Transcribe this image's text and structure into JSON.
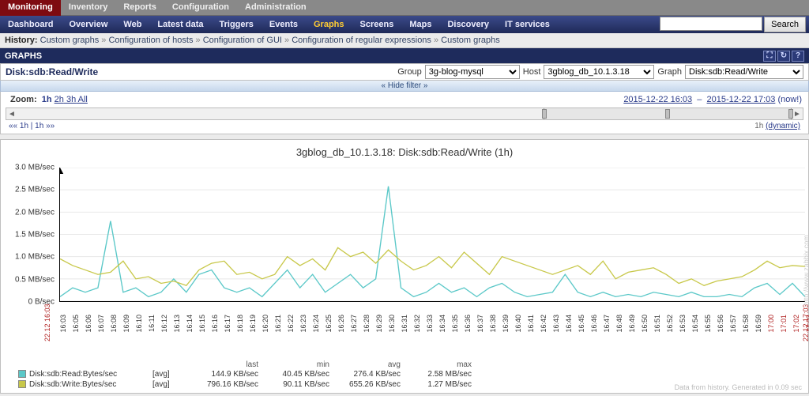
{
  "top_tabs": [
    "Monitoring",
    "Inventory",
    "Reports",
    "Configuration",
    "Administration"
  ],
  "top_tabs_active": 0,
  "sub_nav": [
    "Dashboard",
    "Overview",
    "Web",
    "Latest data",
    "Triggers",
    "Events",
    "Graphs",
    "Screens",
    "Maps",
    "Discovery",
    "IT services"
  ],
  "sub_nav_active": 6,
  "search_btn": "Search",
  "history": {
    "label": "History:",
    "items": [
      "Custom graphs",
      "Configuration of hosts",
      "Configuration of GUI",
      "Configuration of regular expressions",
      "Custom graphs"
    ]
  },
  "graphs_strip": "GRAPHS",
  "filters": {
    "title": "Disk:sdb:Read/Write",
    "group_label": "Group",
    "group_value": "3g-blog-mysql",
    "host_label": "Host",
    "host_value": "3gblog_db_10.1.3.18",
    "graph_label": "Graph",
    "graph_value": "Disk:sdb:Read/Write"
  },
  "hide_filter": "« Hide filter »",
  "zoom": {
    "label": "Zoom:",
    "current": "1h",
    "links": [
      "2h",
      "3h",
      "All"
    ],
    "range_from": "2015-12-22 16:03",
    "range_to": "2015-12-22 17:03",
    "now": "(now!)",
    "nav_left": "«« 1h  |  1h  »»",
    "nav_right": "1h (dynamic)"
  },
  "chart": {
    "title": "3gblog_db_10.1.3.18: Disk:sdb:Read/Write (1h)",
    "ymax": 3.0,
    "ylabels": [
      "3.0 MB/sec",
      "2.5 MB/sec",
      "2.0 MB/sec",
      "1.5 MB/sec",
      "1.0 MB/sec",
      "0.5 MB/sec",
      "0 B/sec"
    ],
    "xlabels": [
      "16:03",
      "16:05",
      "16:06",
      "16:07",
      "16:08",
      "16:09",
      "16:10",
      "16:11",
      "16:12",
      "16:13",
      "16:14",
      "16:15",
      "16:16",
      "16:17",
      "16:18",
      "16:19",
      "16:20",
      "16:21",
      "16:22",
      "16:23",
      "16:24",
      "16:25",
      "16:26",
      "16:27",
      "16:28",
      "16:29",
      "16:30",
      "16:31",
      "16:32",
      "16:33",
      "16:34",
      "16:35",
      "16:36",
      "16:37",
      "16:38",
      "16:39",
      "16:40",
      "16:41",
      "16:42",
      "16:43",
      "16:44",
      "16:45",
      "16:46",
      "16:47",
      "16:48",
      "16:49",
      "16:50",
      "16:51",
      "16:52",
      "16:53",
      "16:54",
      "16:55",
      "16:56",
      "16:57",
      "16:58",
      "16:59",
      "17:00",
      "17:01",
      "17:02",
      "17:03"
    ],
    "date_label_left": "22.12 16:03",
    "date_label_right": "22.12 17:03",
    "series": [
      {
        "name": "Disk:sdb:Read:Bytes/sec",
        "color": "#5bc8c8",
        "agg": "[avg]",
        "last": "144.9 KB/sec",
        "min": "40.45 KB/sec",
        "avg": "276.4 KB/sec",
        "max": "2.58 MB/sec",
        "values": [
          0.1,
          0.3,
          0.2,
          0.3,
          1.8,
          0.2,
          0.3,
          0.1,
          0.2,
          0.5,
          0.2,
          0.6,
          0.7,
          0.3,
          0.2,
          0.3,
          0.1,
          0.4,
          0.7,
          0.3,
          0.6,
          0.2,
          0.4,
          0.6,
          0.3,
          0.5,
          2.58,
          0.3,
          0.1,
          0.2,
          0.4,
          0.2,
          0.3,
          0.1,
          0.3,
          0.4,
          0.2,
          0.1,
          0.15,
          0.2,
          0.6,
          0.2,
          0.1,
          0.2,
          0.1,
          0.15,
          0.1,
          0.2,
          0.15,
          0.1,
          0.2,
          0.1,
          0.1,
          0.15,
          0.1,
          0.3,
          0.4,
          0.15,
          0.4,
          0.1
        ]
      },
      {
        "name": "Disk:sdb:Write:Bytes/sec",
        "color": "#c8c84a",
        "agg": "[avg]",
        "last": "796.16 KB/sec",
        "min": "90.11 KB/sec",
        "avg": "655.26 KB/sec",
        "max": "1.27 MB/sec",
        "values": [
          0.95,
          0.8,
          0.7,
          0.6,
          0.65,
          0.9,
          0.5,
          0.55,
          0.4,
          0.45,
          0.35,
          0.7,
          0.85,
          0.9,
          0.6,
          0.65,
          0.5,
          0.6,
          1.0,
          0.8,
          0.95,
          0.7,
          1.2,
          1.0,
          1.1,
          0.85,
          1.15,
          0.9,
          0.7,
          0.8,
          1.0,
          0.75,
          1.1,
          0.85,
          0.6,
          1.0,
          0.9,
          0.8,
          0.7,
          0.6,
          0.7,
          0.8,
          0.6,
          0.9,
          0.5,
          0.65,
          0.7,
          0.75,
          0.6,
          0.4,
          0.5,
          0.35,
          0.45,
          0.5,
          0.55,
          0.7,
          0.9,
          0.75,
          0.8,
          0.78
        ]
      }
    ],
    "legend_headers": [
      "",
      "",
      "last",
      "min",
      "avg",
      "max"
    ],
    "foot": "Data from history. Generated in 0.09 sec",
    "side": "http://www.zabbix.com"
  }
}
